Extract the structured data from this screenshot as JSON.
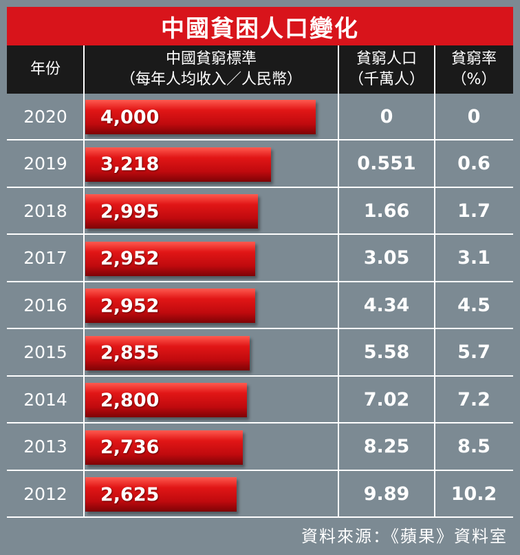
{
  "title": "中國貧困人口變化",
  "headers": {
    "year": "年份",
    "standard_line1": "中國貧窮標準",
    "standard_line2": "（每年人均收入／人民幣）",
    "population_line1": "貧窮人口",
    "population_line2": "（千萬人）",
    "rate_line1": "貧窮率",
    "rate_line2": "（%）"
  },
  "chart_data": {
    "type": "bar",
    "orientation": "horizontal",
    "title": "中國貧困人口變化",
    "categories": [
      "2020",
      "2019",
      "2018",
      "2017",
      "2016",
      "2015",
      "2014",
      "2013",
      "2012"
    ],
    "series": [
      {
        "values": [
          4000,
          3218,
          2995,
          2952,
          2952,
          2855,
          2800,
          2736,
          2625
        ],
        "labels": [
          "4,000",
          "3,218",
          "2,995",
          "2,952",
          "2,952",
          "2,855",
          "2,800",
          "2,736",
          "2,625"
        ]
      }
    ],
    "xlim": [
      0,
      4000
    ],
    "population": [
      "0",
      "0.551",
      "1.66",
      "3.05",
      "4.34",
      "5.58",
      "7.02",
      "8.25",
      "9.89"
    ],
    "rate": [
      "0",
      "0.6",
      "1.7",
      "3.1",
      "4.5",
      "5.7",
      "7.2",
      "8.5",
      "10.2"
    ]
  },
  "source": "資料來源：《蘋果》資料室",
  "colors": {
    "background": "#7c8a93",
    "title_bar": "#d8141b",
    "header": "#1a1a1a",
    "bar": "#d8141b"
  }
}
